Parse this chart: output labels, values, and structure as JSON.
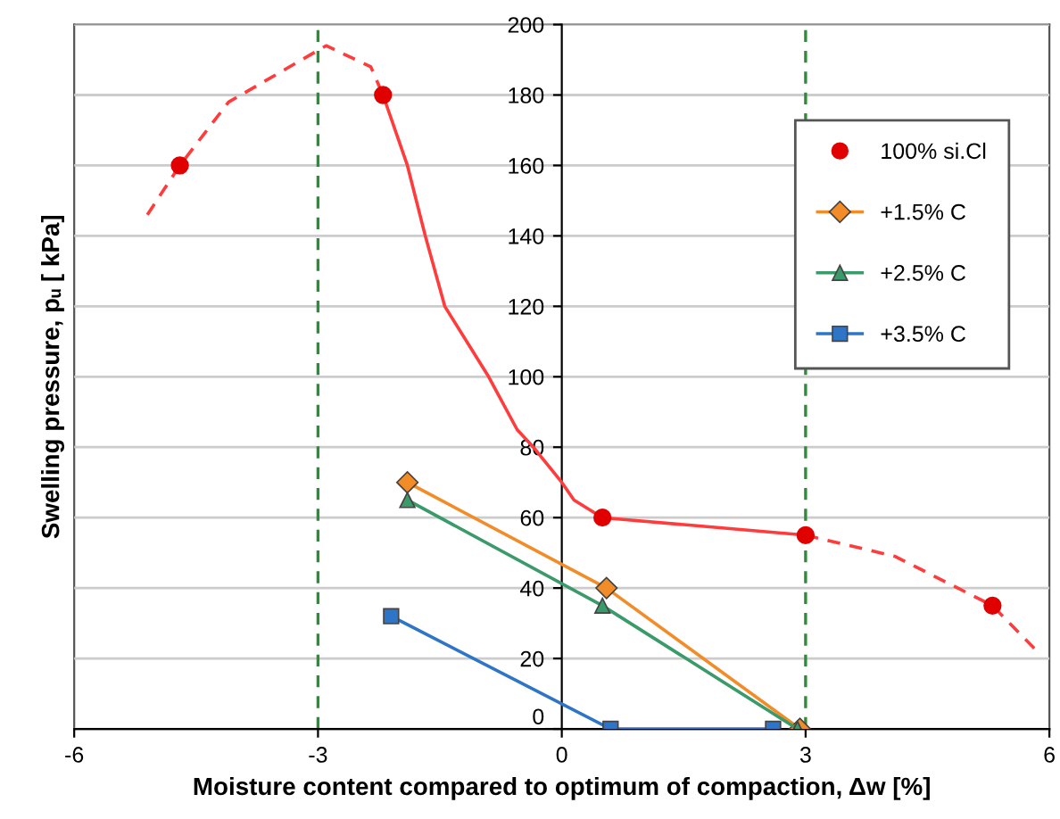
{
  "chart_data": {
    "type": "line",
    "xlabel": "Moisture content compared to optimum of compaction, Δw [%]",
    "ylabel": "Swelling pressure, pᵤ [ kPa]",
    "xlim": [
      -6,
      6
    ],
    "xticks": [
      -6,
      -3,
      0,
      3,
      6
    ],
    "ylim": [
      0,
      200
    ],
    "yticks": [
      0,
      20,
      40,
      60,
      80,
      100,
      120,
      140,
      160,
      180,
      200
    ],
    "grid": "y",
    "legend": "top right",
    "series": [
      {
        "color": "#ff3b3b",
        "x": [
          -2.2,
          -1.9,
          -1.68,
          -1.44,
          -0.9,
          -0.55,
          -0.35,
          0,
          0.15,
          0.5,
          1.5,
          3
        ],
        "values": [
          180,
          160,
          140,
          120,
          100,
          85,
          80,
          70,
          65,
          60,
          58,
          55
        ],
        "line_style": "solid",
        "marker": "none"
      },
      {
        "color": "#ff3b3b",
        "x": [
          -5.1,
          -4.7,
          -4.1,
          -2.9,
          -2.35,
          -2.2
        ],
        "values": [
          146,
          160,
          178,
          194,
          188,
          180
        ],
        "line_style": "dashed",
        "marker": "none"
      },
      {
        "color": "#ff3b3b",
        "x": [
          3,
          4.1,
          5.3,
          5.85
        ],
        "values": [
          55,
          49,
          35,
          22
        ],
        "line_style": "dashed",
        "marker": "none"
      },
      {
        "type": "scatter",
        "name": "100% si.Cl",
        "color": "#e00000",
        "x": [
          -4.7,
          -2.2,
          0.5,
          3,
          5.3
        ],
        "values": [
          160,
          180,
          60,
          55,
          35
        ],
        "marker": "circle"
      },
      {
        "name": "+1.5% C",
        "color": "#f28c28",
        "x": [
          -1.9,
          0.55,
          2.93
        ],
        "values": [
          70,
          40,
          0
        ],
        "marker": "diamond",
        "line_style": "solid"
      },
      {
        "name": "+2.5% C",
        "color": "#3a9a6a",
        "x": [
          -1.9,
          0.5,
          2.9
        ],
        "values": [
          65,
          35,
          0
        ],
        "marker": "triangle",
        "line_style": "solid"
      },
      {
        "name": "+3.5% C",
        "color": "#2e75c8",
        "x": [
          -2.1,
          0.6,
          2.6
        ],
        "values": [
          32,
          0,
          0
        ],
        "marker": "square",
        "line_style": "solid"
      }
    ],
    "ref_lines": [
      {
        "axis": "x",
        "value": -3,
        "color": "#2e8b3a",
        "line_style": "dashed"
      },
      {
        "axis": "x",
        "value": 3,
        "color": "#2e8b3a",
        "line_style": "dashed"
      }
    ]
  }
}
